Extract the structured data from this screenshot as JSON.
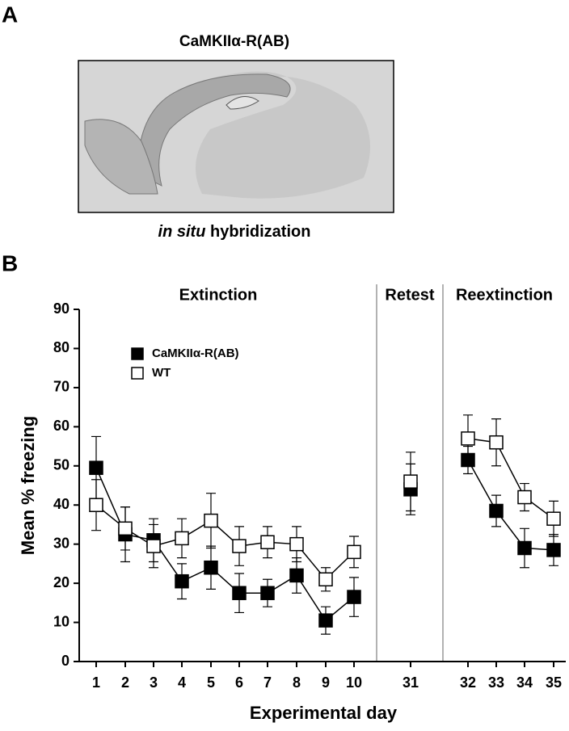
{
  "figure": {
    "panel_a_label": "A",
    "panel_a_title": "CaMKIIα-R(AB)",
    "caption_italic": "in situ",
    "caption_rest": "hybridization",
    "panel_b_label": "B"
  },
  "chart_data": {
    "type": "line",
    "xlabel": "Experimental day",
    "ylabel": "Mean % freezing",
    "section_labels": [
      "Extinction",
      "Retest",
      "Reextinction"
    ],
    "categories": [
      "1",
      "2",
      "3",
      "4",
      "5",
      "6",
      "7",
      "8",
      "9",
      "10",
      "31",
      "32",
      "33",
      "34",
      "35"
    ],
    "series": [
      {
        "name": "CaMKIIα-R(AB)",
        "color": "#000000",
        "marker": "filled",
        "values": [
          49.5,
          32.5,
          31,
          20.5,
          24,
          17.5,
          17.5,
          22,
          10.5,
          16.5,
          44,
          51.5,
          38.5,
          29,
          28.5
        ],
        "errors": [
          8,
          7,
          5.5,
          4.5,
          5.5,
          5,
          3.5,
          4.5,
          3.5,
          5,
          6.5,
          3.5,
          4,
          5,
          4
        ]
      },
      {
        "name": "WT",
        "color": "#000000",
        "marker": "open",
        "values": [
          40,
          34,
          29.5,
          31.5,
          36,
          29.5,
          30.5,
          30,
          21,
          28,
          46,
          57,
          56,
          42,
          36.5
        ],
        "errors": [
          6.5,
          5.5,
          5.5,
          5,
          7,
          5,
          4,
          4.5,
          3,
          4,
          7.5,
          6,
          6,
          3.5,
          4.5
        ]
      }
    ],
    "ylim": [
      0,
      90
    ],
    "yticks": [
      0,
      10,
      20,
      30,
      40,
      50,
      60,
      70,
      80,
      90
    ]
  }
}
